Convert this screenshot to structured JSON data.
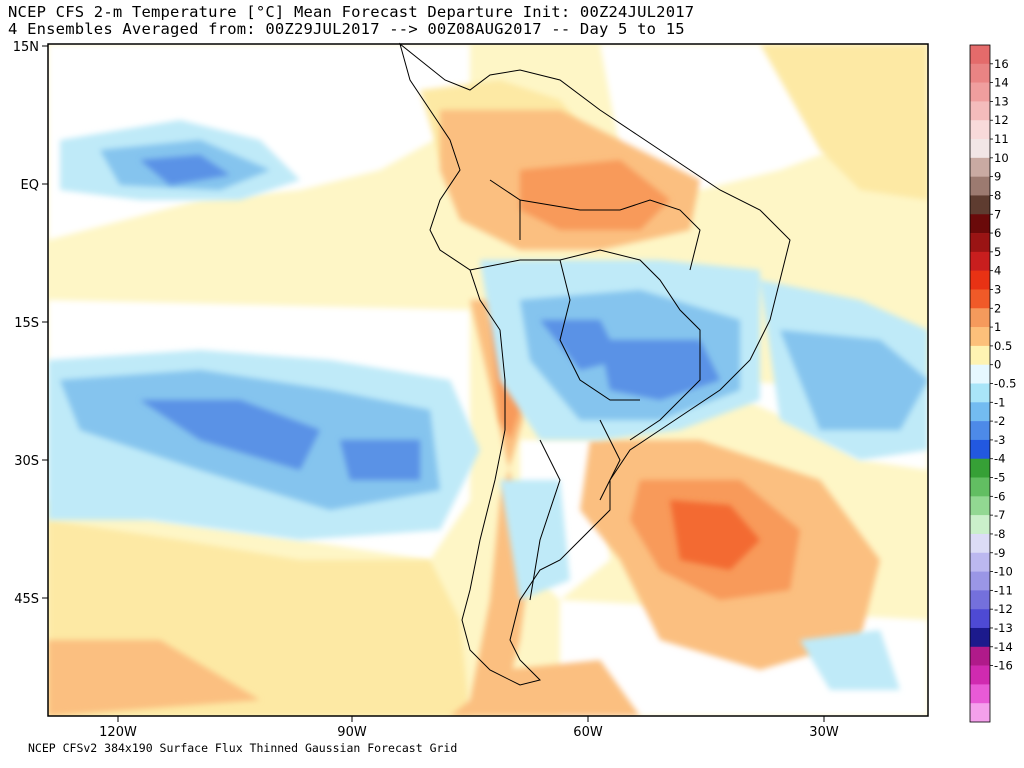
{
  "header": {
    "line1": "NCEP CFS 2-m Temperature [°C] Mean Forecast Departure Init: 00Z24JUL2017",
    "line2": "4 Ensembles Averaged from: 00Z29JUL2017 --> 00Z08AUG2017 -- Day 5 to 15"
  },
  "footer": "NCEP CFSv2 384x190 Surface Flux Thinned Gaussian Forecast Grid",
  "axes": {
    "lat_labels": [
      "15N",
      "EQ",
      "15S",
      "30S",
      "45S"
    ],
    "lon_labels": [
      "120W",
      "90W",
      "60W",
      "30W"
    ]
  },
  "colorbar": {
    "levels": [
      "16",
      "14",
      "13",
      "12",
      "11",
      "10",
      "9",
      "8",
      "7",
      "6",
      "5",
      "4",
      "3",
      "2",
      "1",
      "0.5",
      "0",
      "-0.5",
      "-1",
      "-2",
      "-3",
      "-4",
      "-5",
      "-6",
      "-7",
      "-8",
      "-9",
      "-10",
      "-11",
      "-12",
      "-13",
      "-14",
      "-16"
    ],
    "colors": [
      "#e46b6b",
      "#e98484",
      "#ef9e9e",
      "#f4bcbc",
      "#f8dada",
      "#f2e6e6",
      "#c9aaa2",
      "#9c7a70",
      "#5e3c30",
      "#6a0a0a",
      "#9a1414",
      "#c81e1e",
      "#e83214",
      "#f05a28",
      "#f59a5c",
      "#fcc07a",
      "#fef3b2",
      "#e6f8ff",
      "#a9e5f8",
      "#73bcf1",
      "#4d8ae8",
      "#2258e0",
      "#36a036",
      "#62be62",
      "#92d892",
      "#caf0ca",
      "#dcdcf6",
      "#bcb8f0",
      "#9a96e6",
      "#7470dc",
      "#4e4ad4",
      "#1c1a8c",
      "#b01a8a",
      "#d02ab0",
      "#e85ad6",
      "#f5a0ec"
    ]
  }
}
